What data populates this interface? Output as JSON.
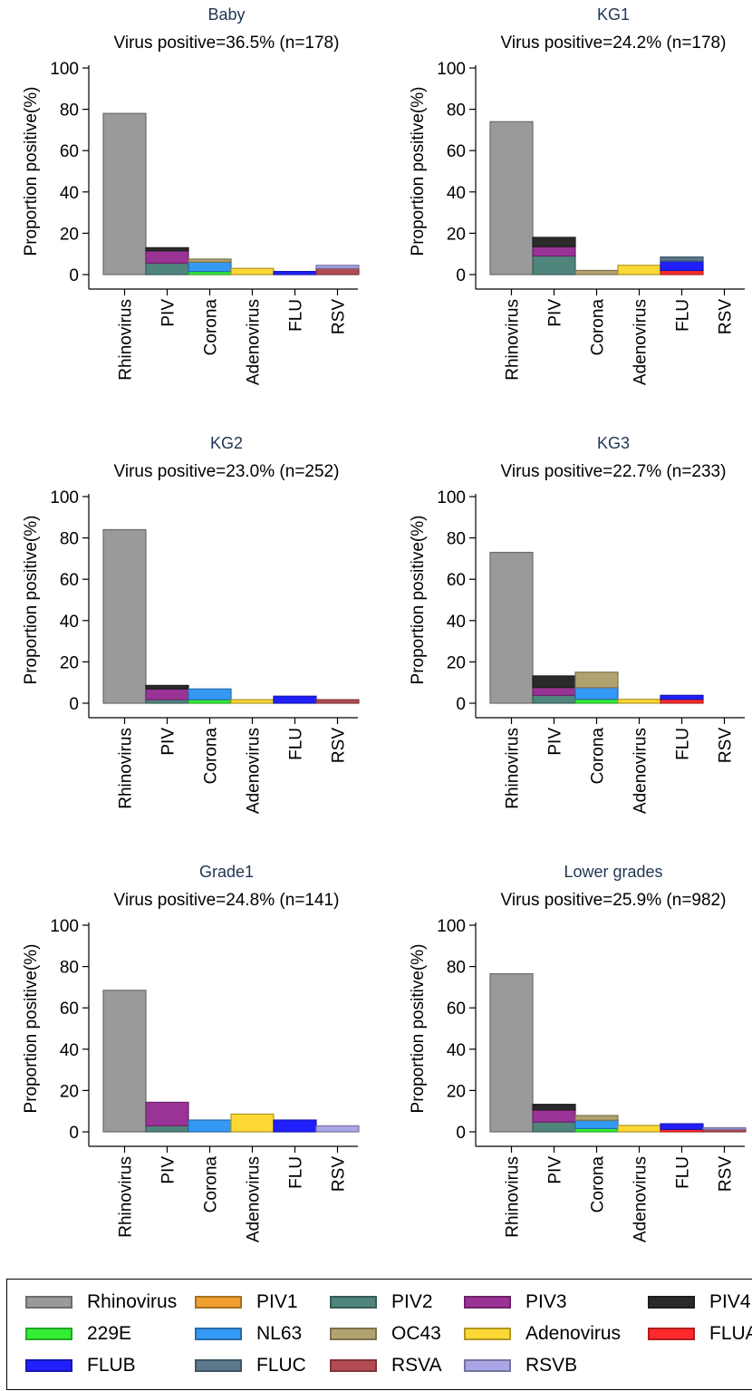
{
  "colors": {
    "Rhinovirus": "#9a9a9a",
    "PIV1": "#f0a030",
    "PIV2": "#4f857b",
    "PIV3": "#9a3396",
    "PIV4": "#2a2a2a",
    "229E": "#33ee33",
    "NL63": "#3399f5",
    "OC43": "#b2a26f",
    "Adenovirus": "#fdd835",
    "FLUA": "#ff2a2a",
    "FLUB": "#2020ff",
    "FLUC": "#5a7a8c",
    "RSVA": "#b24c52",
    "RSVB": "#aaa6e6"
  },
  "legend": {
    "items": [
      "Rhinovirus",
      "PIV1",
      "PIV2",
      "PIV3",
      "PIV4",
      "229E",
      "NL63",
      "OC43",
      "Adenovirus",
      "FLUA",
      "FLUB",
      "FLUC",
      "RSVA",
      "RSVB"
    ]
  },
  "chart_data": [
    {
      "type": "bar",
      "stacked": true,
      "title": "Baby",
      "subtitle": "Virus positive=36.5% (n=178)",
      "ylabel": "Proportion positive(%)",
      "ylim": [
        0,
        100
      ],
      "yticks": [
        0,
        20,
        40,
        60,
        80,
        100
      ],
      "categories": [
        "Rhinovirus",
        "PIV",
        "Corona",
        "Adenovirus",
        "FLU",
        "RSV"
      ],
      "stacks": [
        [
          {
            "name": "Rhinovirus",
            "value": 78
          }
        ],
        [
          {
            "name": "PIV2",
            "value": 5.5
          },
          {
            "name": "PIV3",
            "value": 6
          },
          {
            "name": "PIV4",
            "value": 1.5
          }
        ],
        [
          {
            "name": "229E",
            "value": 1.5
          },
          {
            "name": "NL63",
            "value": 4.5
          },
          {
            "name": "OC43",
            "value": 1.5
          }
        ],
        [
          {
            "name": "Adenovirus",
            "value": 3
          }
        ],
        [
          {
            "name": "FLUB",
            "value": 1.5
          }
        ],
        [
          {
            "name": "RSVA",
            "value": 3
          },
          {
            "name": "RSVB",
            "value": 1.5
          }
        ]
      ]
    },
    {
      "type": "bar",
      "stacked": true,
      "title": "KG1",
      "subtitle": "Virus positive=24.2% (n=178)",
      "ylabel": "Proportion positive(%)",
      "ylim": [
        0,
        100
      ],
      "yticks": [
        0,
        20,
        40,
        60,
        80,
        100
      ],
      "categories": [
        "Rhinovirus",
        "PIV",
        "Corona",
        "Adenovirus",
        "FLU",
        "RSV"
      ],
      "stacks": [
        [
          {
            "name": "Rhinovirus",
            "value": 74
          }
        ],
        [
          {
            "name": "PIV2",
            "value": 9
          },
          {
            "name": "PIV3",
            "value": 4.5
          },
          {
            "name": "PIV4",
            "value": 4.5
          }
        ],
        [
          {
            "name": "OC43",
            "value": 2
          }
        ],
        [
          {
            "name": "Adenovirus",
            "value": 4.5
          }
        ],
        [
          {
            "name": "FLUA",
            "value": 2
          },
          {
            "name": "FLUB",
            "value": 4.5
          },
          {
            "name": "FLUC",
            "value": 2
          }
        ],
        []
      ]
    },
    {
      "type": "bar",
      "stacked": true,
      "title": "KG2",
      "subtitle": "Virus positive=23.0% (n=252)",
      "ylabel": "Proportion positive(%)",
      "ylim": [
        0,
        100
      ],
      "yticks": [
        0,
        20,
        40,
        60,
        80,
        100
      ],
      "categories": [
        "Rhinovirus",
        "PIV",
        "Corona",
        "Adenovirus",
        "FLU",
        "RSV"
      ],
      "stacks": [
        [
          {
            "name": "Rhinovirus",
            "value": 84
          }
        ],
        [
          {
            "name": "PIV2",
            "value": 1.7
          },
          {
            "name": "PIV3",
            "value": 5.2
          },
          {
            "name": "PIV4",
            "value": 1.7
          }
        ],
        [
          {
            "name": "229E",
            "value": 1.7
          },
          {
            "name": "NL63",
            "value": 5.2
          }
        ],
        [
          {
            "name": "Adenovirus",
            "value": 1.7
          }
        ],
        [
          {
            "name": "FLUB",
            "value": 3.4
          }
        ],
        [
          {
            "name": "RSVA",
            "value": 1.7
          }
        ]
      ]
    },
    {
      "type": "bar",
      "stacked": true,
      "title": "KG3",
      "subtitle": "Virus positive=22.7% (n=233)",
      "ylabel": "Proportion positive(%)",
      "ylim": [
        0,
        100
      ],
      "yticks": [
        0,
        20,
        40,
        60,
        80,
        100
      ],
      "categories": [
        "Rhinovirus",
        "PIV",
        "Corona",
        "Adenovirus",
        "FLU",
        "RSV"
      ],
      "stacks": [
        [
          {
            "name": "Rhinovirus",
            "value": 73
          }
        ],
        [
          {
            "name": "PIV2",
            "value": 3.8
          },
          {
            "name": "PIV3",
            "value": 3.8
          },
          {
            "name": "PIV4",
            "value": 5.6
          }
        ],
        [
          {
            "name": "229E",
            "value": 1.9
          },
          {
            "name": "NL63",
            "value": 5.6
          },
          {
            "name": "OC43",
            "value": 7.5
          }
        ],
        [
          {
            "name": "Adenovirus",
            "value": 1.9
          }
        ],
        [
          {
            "name": "FLUA",
            "value": 1.9
          },
          {
            "name": "FLUB",
            "value": 1.9
          }
        ],
        []
      ]
    },
    {
      "type": "bar",
      "stacked": true,
      "title": "Grade1",
      "subtitle": "Virus positive=24.8% (n=141)",
      "ylabel": "Proportion positive(%)",
      "ylim": [
        0,
        100
      ],
      "yticks": [
        0,
        20,
        40,
        60,
        80,
        100
      ],
      "categories": [
        "Rhinovirus",
        "PIV",
        "Corona",
        "Adenovirus",
        "FLU",
        "RSV"
      ],
      "stacks": [
        [
          {
            "name": "Rhinovirus",
            "value": 68.5
          }
        ],
        [
          {
            "name": "PIV2",
            "value": 2.9
          },
          {
            "name": "PIV3",
            "value": 11.4
          }
        ],
        [
          {
            "name": "NL63",
            "value": 5.7
          }
        ],
        [
          {
            "name": "Adenovirus",
            "value": 8.6
          }
        ],
        [
          {
            "name": "FLUB",
            "value": 5.7
          }
        ],
        [
          {
            "name": "RSVB",
            "value": 2.9
          }
        ]
      ]
    },
    {
      "type": "bar",
      "stacked": true,
      "title": "Lower grades",
      "subtitle": "Virus positive=25.9% (n=982)",
      "ylabel": "Proportion positive(%)",
      "ylim": [
        0,
        100
      ],
      "yticks": [
        0,
        20,
        40,
        60,
        80,
        100
      ],
      "categories": [
        "Rhinovirus",
        "PIV",
        "Corona",
        "Adenovirus",
        "FLU",
        "RSV"
      ],
      "stacks": [
        [
          {
            "name": "Rhinovirus",
            "value": 76.5
          }
        ],
        [
          {
            "name": "PIV2",
            "value": 4.7
          },
          {
            "name": "PIV3",
            "value": 5.9
          },
          {
            "name": "PIV4",
            "value": 2.7
          }
        ],
        [
          {
            "name": "229E",
            "value": 1.6
          },
          {
            "name": "NL63",
            "value": 4
          },
          {
            "name": "OC43",
            "value": 2.3
          }
        ],
        [
          {
            "name": "Adenovirus",
            "value": 3.1
          }
        ],
        [
          {
            "name": "FLUA",
            "value": 1.2
          },
          {
            "name": "FLUB",
            "value": 2.7
          }
        ],
        [
          {
            "name": "RSVA",
            "value": 1.2
          },
          {
            "name": "RSVB",
            "value": 0.8
          }
        ]
      ]
    }
  ]
}
